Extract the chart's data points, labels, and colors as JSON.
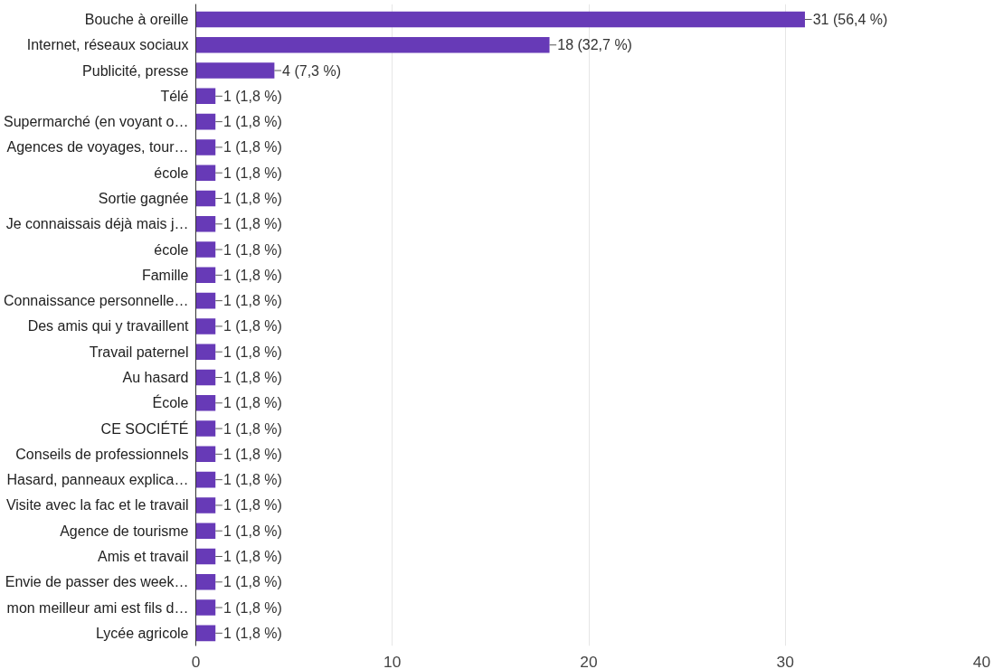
{
  "chart_data": {
    "type": "bar",
    "orientation": "horizontal",
    "categories": [
      "Bouche à oreille",
      "Internet, réseaux sociaux",
      "Publicité, presse",
      "Télé",
      "Supermarché (en voyant o…",
      "Agences de voyages, tour…",
      "école",
      "Sortie gagnée",
      "Je connaissais déjà mais j…",
      "école",
      "Famille",
      "Connaissance personnelle…",
      "Des amis qui y travaillent",
      "Travail paternel",
      "Au hasard",
      "École",
      "CE SOCIÉTÉ",
      "Conseils de professionnels",
      "Hasard, panneaux explica…",
      "Visite avec la fac et le travail",
      "Agence de tourisme",
      "Amis et travail",
      "Envie de passer des week…",
      "mon meilleur ami est fils d…",
      "Lycée agricole"
    ],
    "values": [
      31,
      18,
      4,
      1,
      1,
      1,
      1,
      1,
      1,
      1,
      1,
      1,
      1,
      1,
      1,
      1,
      1,
      1,
      1,
      1,
      1,
      1,
      1,
      1,
      1
    ],
    "value_labels": [
      "31 (56,4 %)",
      "18 (32,7 %)",
      "4 (7,3 %)",
      "1 (1,8 %)",
      "1 (1,8 %)",
      "1 (1,8 %)",
      "1 (1,8 %)",
      "1 (1,8 %)",
      "1 (1,8 %)",
      "1 (1,8 %)",
      "1 (1,8 %)",
      "1 (1,8 %)",
      "1 (1,8 %)",
      "1 (1,8 %)",
      "1 (1,8 %)",
      "1 (1,8 %)",
      "1 (1,8 %)",
      "1 (1,8 %)",
      "1 (1,8 %)",
      "1 (1,8 %)",
      "1 (1,8 %)",
      "1 (1,8 %)",
      "1 (1,8 %)",
      "1 (1,8 %)",
      "1 (1,8 %)"
    ],
    "color": "#673ab7",
    "xlim": [
      0,
      40
    ],
    "xticks": [
      0,
      10,
      20,
      30,
      40
    ],
    "grid": "x"
  }
}
